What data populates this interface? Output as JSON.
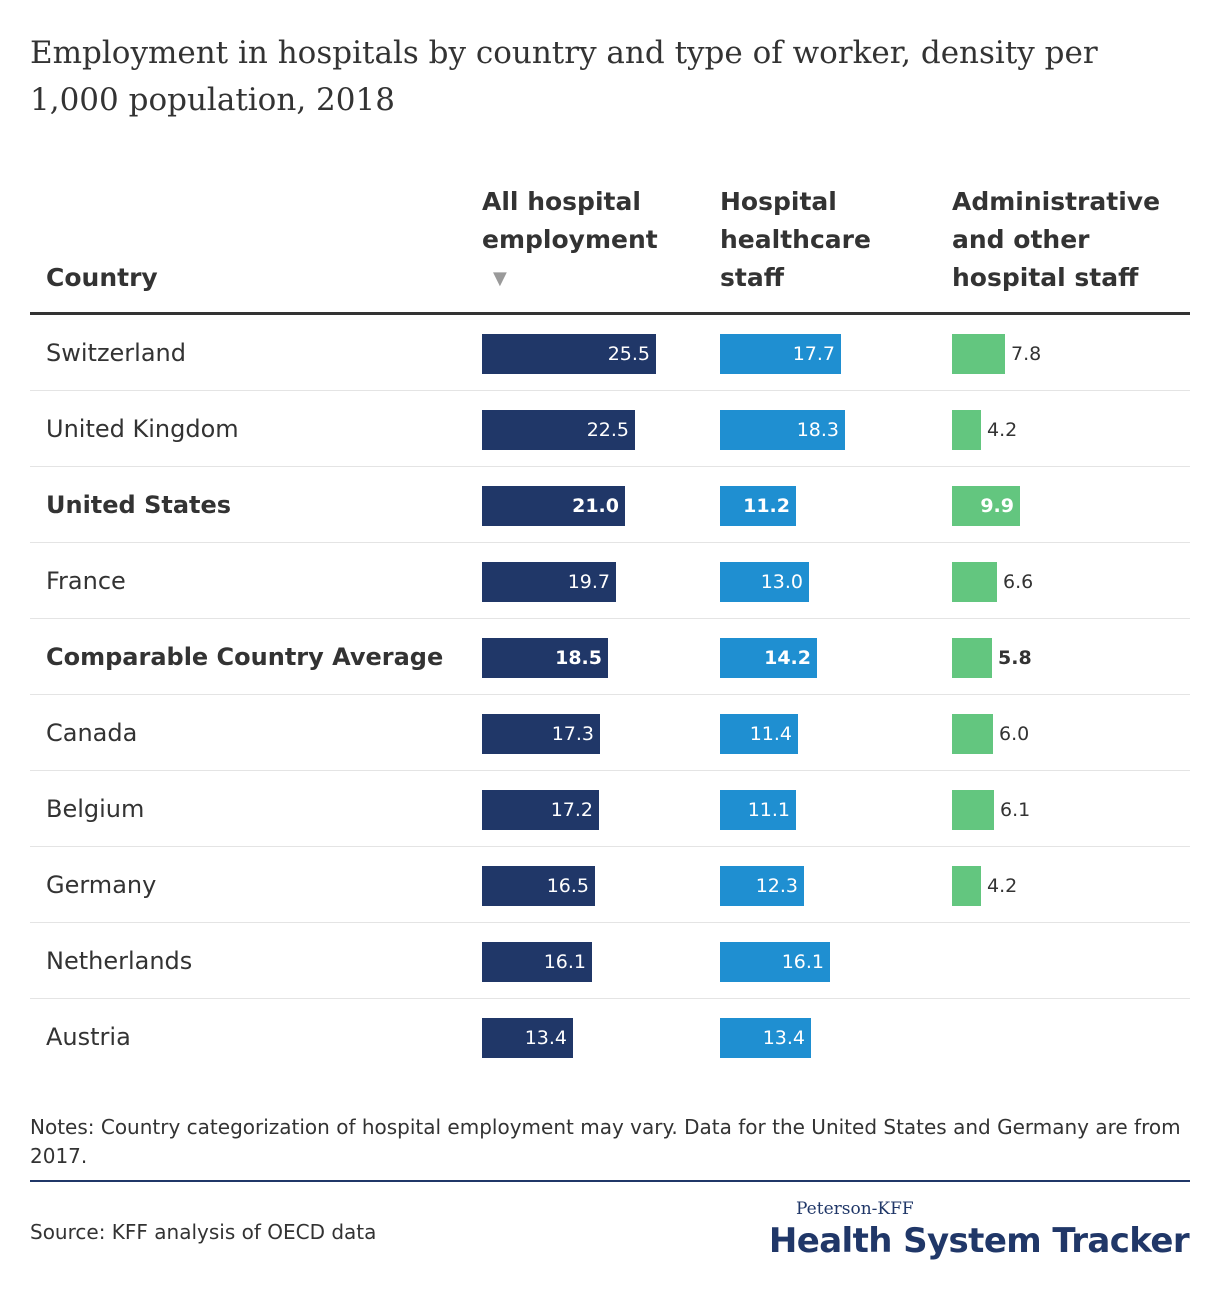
{
  "title": "Employment in hospitals by country and type of worker, density per 1,000 population, 2018",
  "headers": {
    "country": "Country",
    "all": "All hospital employment",
    "healthcare": "Hospital healthcare staff",
    "admin": "Administrative and other hospital staff",
    "sort_icon": "▼"
  },
  "colors": {
    "all": "#203768",
    "healthcare": "#1f8fd1",
    "admin": "#63c67f"
  },
  "chart_data": {
    "type": "table",
    "title": "Employment in hospitals by country and type of worker, density per 1,000 population, 2018",
    "columns": [
      "Country",
      "All hospital employment",
      "Hospital healthcare staff",
      "Administrative and other hospital staff"
    ],
    "sorted_by": "All hospital employment",
    "sort_order": "descending",
    "rows": [
      {
        "country": "Switzerland",
        "all": 25.5,
        "healthcare": 17.7,
        "admin": 7.8,
        "bold": false
      },
      {
        "country": "United Kingdom",
        "all": 22.5,
        "healthcare": 18.3,
        "admin": 4.2,
        "bold": false
      },
      {
        "country": "United States",
        "all": 21.0,
        "healthcare": 11.2,
        "admin": 9.9,
        "bold": true
      },
      {
        "country": "France",
        "all": 19.7,
        "healthcare": 13.0,
        "admin": 6.6,
        "bold": false
      },
      {
        "country": "Comparable Country Average",
        "all": 18.5,
        "healthcare": 14.2,
        "admin": 5.8,
        "bold": true
      },
      {
        "country": "Canada",
        "all": 17.3,
        "healthcare": 11.4,
        "admin": 6.0,
        "bold": false
      },
      {
        "country": "Belgium",
        "all": 17.2,
        "healthcare": 11.1,
        "admin": 6.1,
        "bold": false
      },
      {
        "country": "Germany",
        "all": 16.5,
        "healthcare": 12.3,
        "admin": 4.2,
        "bold": false
      },
      {
        "country": "Netherlands",
        "all": 16.1,
        "healthcare": 16.1,
        "admin": null,
        "bold": false
      },
      {
        "country": "Austria",
        "all": 13.4,
        "healthcare": 13.4,
        "admin": null,
        "bold": false
      }
    ]
  },
  "notes": "Notes: Country categorization of hospital employment may vary. Data for the United States and Germany are from 2017.",
  "source": "Source: KFF analysis of OECD data",
  "logo": {
    "top": "Peterson-KFF",
    "main": "Health System Tracker"
  }
}
